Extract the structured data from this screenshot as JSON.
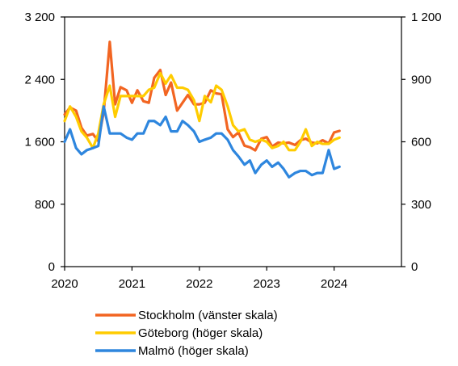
{
  "chart_data": {
    "type": "line",
    "title": "",
    "xlabel": "",
    "ylabel_left": "",
    "ylabel_right": "",
    "grid": false,
    "legend_position": "bottom",
    "x_ticks": [
      "2020",
      "2021",
      "2022",
      "2023",
      "2024"
    ],
    "x_range": [
      2020,
      2025
    ],
    "left_axis": {
      "range": [
        0,
        3200
      ],
      "ticks": [
        0,
        800,
        1600,
        2400,
        3200
      ],
      "tick_labels": [
        "0",
        "800",
        "1 600",
        "2 400",
        "3 200"
      ]
    },
    "right_axis": {
      "range": [
        0,
        1200
      ],
      "ticks": [
        0,
        300,
        600,
        900,
        1200
      ],
      "tick_labels": [
        "0",
        "300",
        "600",
        "900",
        "1 200"
      ]
    },
    "series": [
      {
        "name": "Stockholm (vänster skala)",
        "axis": "left",
        "color": "#f26522",
        "points": [
          [
            2020.0,
            1950
          ],
          [
            2020.08,
            2040
          ],
          [
            2020.17,
            2000
          ],
          [
            2020.25,
            1780
          ],
          [
            2020.33,
            1680
          ],
          [
            2020.42,
            1700
          ],
          [
            2020.5,
            1610
          ],
          [
            2020.58,
            1980
          ],
          [
            2020.67,
            2880
          ],
          [
            2020.75,
            2080
          ],
          [
            2020.83,
            2300
          ],
          [
            2020.92,
            2260
          ],
          [
            2021.0,
            2100
          ],
          [
            2021.08,
            2260
          ],
          [
            2021.17,
            2120
          ],
          [
            2021.25,
            2100
          ],
          [
            2021.33,
            2420
          ],
          [
            2021.42,
            2520
          ],
          [
            2021.5,
            2200
          ],
          [
            2021.58,
            2360
          ],
          [
            2021.67,
            2000
          ],
          [
            2021.75,
            2100
          ],
          [
            2021.83,
            2200
          ],
          [
            2021.92,
            2080
          ],
          [
            2022.0,
            2080
          ],
          [
            2022.08,
            2100
          ],
          [
            2022.17,
            2260
          ],
          [
            2022.25,
            2220
          ],
          [
            2022.33,
            2210
          ],
          [
            2022.42,
            1760
          ],
          [
            2022.5,
            1660
          ],
          [
            2022.58,
            1720
          ],
          [
            2022.67,
            1550
          ],
          [
            2022.75,
            1530
          ],
          [
            2022.83,
            1490
          ],
          [
            2022.92,
            1640
          ],
          [
            2023.0,
            1660
          ],
          [
            2023.08,
            1540
          ],
          [
            2023.17,
            1590
          ],
          [
            2023.25,
            1580
          ],
          [
            2023.33,
            1590
          ],
          [
            2023.42,
            1560
          ],
          [
            2023.5,
            1620
          ],
          [
            2023.58,
            1640
          ],
          [
            2023.67,
            1590
          ],
          [
            2023.75,
            1580
          ],
          [
            2023.83,
            1620
          ],
          [
            2023.92,
            1580
          ],
          [
            2024.0,
            1720
          ],
          [
            2024.08,
            1740
          ]
        ]
      },
      {
        "name": "Göteborg (höger skala)",
        "axis": "right",
        "color": "#ffcc00",
        "points": [
          [
            2020.0,
            700
          ],
          [
            2020.08,
            770
          ],
          [
            2020.17,
            720
          ],
          [
            2020.25,
            650
          ],
          [
            2020.33,
            620
          ],
          [
            2020.42,
            570
          ],
          [
            2020.5,
            640
          ],
          [
            2020.58,
            780
          ],
          [
            2020.67,
            870
          ],
          [
            2020.75,
            720
          ],
          [
            2020.83,
            820
          ],
          [
            2020.92,
            820
          ],
          [
            2021.0,
            820
          ],
          [
            2021.08,
            820
          ],
          [
            2021.17,
            820
          ],
          [
            2021.25,
            850
          ],
          [
            2021.33,
            860
          ],
          [
            2021.42,
            930
          ],
          [
            2021.5,
            880
          ],
          [
            2021.58,
            920
          ],
          [
            2021.67,
            860
          ],
          [
            2021.75,
            860
          ],
          [
            2021.83,
            850
          ],
          [
            2021.92,
            800
          ],
          [
            2022.0,
            700
          ],
          [
            2022.08,
            820
          ],
          [
            2022.17,
            790
          ],
          [
            2022.25,
            870
          ],
          [
            2022.33,
            850
          ],
          [
            2022.42,
            770
          ],
          [
            2022.5,
            680
          ],
          [
            2022.58,
            650
          ],
          [
            2022.67,
            660
          ],
          [
            2022.75,
            610
          ],
          [
            2022.83,
            600
          ],
          [
            2022.92,
            610
          ],
          [
            2023.0,
            600
          ],
          [
            2023.08,
            570
          ],
          [
            2023.17,
            580
          ],
          [
            2023.25,
            600
          ],
          [
            2023.33,
            560
          ],
          [
            2023.42,
            560
          ],
          [
            2023.5,
            600
          ],
          [
            2023.58,
            660
          ],
          [
            2023.67,
            580
          ],
          [
            2023.75,
            600
          ],
          [
            2023.83,
            590
          ],
          [
            2023.92,
            590
          ],
          [
            2024.0,
            610
          ],
          [
            2024.08,
            620
          ]
        ]
      },
      {
        "name": "Malmö (höger skala)",
        "axis": "right",
        "color": "#2e86de",
        "points": [
          [
            2020.0,
            600
          ],
          [
            2020.08,
            660
          ],
          [
            2020.17,
            570
          ],
          [
            2020.25,
            540
          ],
          [
            2020.33,
            560
          ],
          [
            2020.42,
            570
          ],
          [
            2020.5,
            580
          ],
          [
            2020.58,
            770
          ],
          [
            2020.67,
            640
          ],
          [
            2020.75,
            640
          ],
          [
            2020.83,
            640
          ],
          [
            2020.92,
            620
          ],
          [
            2021.0,
            610
          ],
          [
            2021.08,
            640
          ],
          [
            2021.17,
            640
          ],
          [
            2021.25,
            700
          ],
          [
            2021.33,
            700
          ],
          [
            2021.42,
            680
          ],
          [
            2021.5,
            720
          ],
          [
            2021.58,
            650
          ],
          [
            2021.67,
            650
          ],
          [
            2021.75,
            700
          ],
          [
            2021.83,
            680
          ],
          [
            2021.92,
            650
          ],
          [
            2022.0,
            600
          ],
          [
            2022.08,
            610
          ],
          [
            2022.17,
            620
          ],
          [
            2022.25,
            640
          ],
          [
            2022.33,
            640
          ],
          [
            2022.42,
            610
          ],
          [
            2022.5,
            560
          ],
          [
            2022.58,
            530
          ],
          [
            2022.67,
            490
          ],
          [
            2022.75,
            510
          ],
          [
            2022.83,
            450
          ],
          [
            2022.92,
            490
          ],
          [
            2023.0,
            510
          ],
          [
            2023.08,
            480
          ],
          [
            2023.17,
            500
          ],
          [
            2023.25,
            470
          ],
          [
            2023.33,
            430
          ],
          [
            2023.42,
            450
          ],
          [
            2023.5,
            460
          ],
          [
            2023.58,
            460
          ],
          [
            2023.67,
            440
          ],
          [
            2023.75,
            450
          ],
          [
            2023.83,
            450
          ],
          [
            2023.92,
            560
          ],
          [
            2024.0,
            470
          ],
          [
            2024.08,
            480
          ]
        ]
      }
    ]
  }
}
